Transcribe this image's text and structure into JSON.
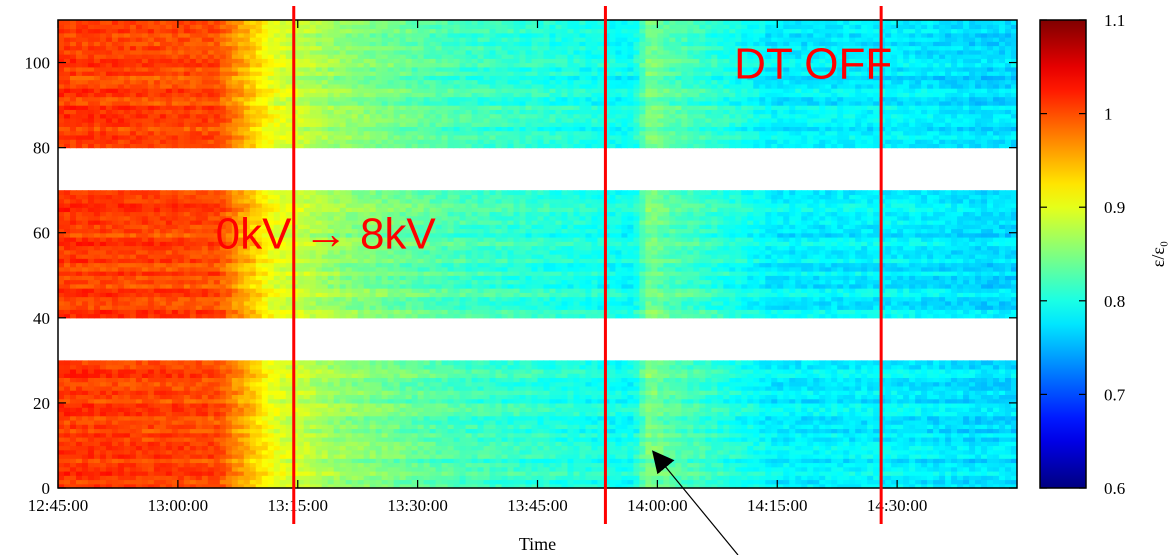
{
  "chart_data": {
    "type": "heatmap",
    "xlabel": "Time",
    "ylabel": "",
    "colorbar_label": "ε/ε₀",
    "x_ticks": [
      "12:45:00",
      "13:00:00",
      "13:15:00",
      "13:30:00",
      "13:45:00",
      "14:00:00",
      "14:15:00",
      "14:30:00"
    ],
    "x_range_minutes": [
      0,
      120
    ],
    "y_ticks": [
      0,
      20,
      40,
      60,
      80,
      100
    ],
    "ylim": [
      0,
      110
    ],
    "colorbar_ticks": [
      0.6,
      0.7,
      0.8,
      0.9,
      1,
      1.1
    ],
    "color_range": [
      0.6,
      1.1
    ],
    "colormap": "jet",
    "data_bands": [
      [
        0,
        30
      ],
      [
        40,
        70
      ],
      [
        80,
        110
      ]
    ],
    "time_profile": [
      {
        "t": 0,
        "v": 1.01
      },
      {
        "t": 20,
        "v": 1.0
      },
      {
        "t": 27,
        "v": 0.9
      },
      {
        "t": 35,
        "v": 0.86
      },
      {
        "t": 50,
        "v": 0.82
      },
      {
        "t": 65,
        "v": 0.8
      },
      {
        "t": 72,
        "v": 0.79
      },
      {
        "t": 74,
        "v": 0.85
      },
      {
        "t": 76,
        "v": 0.83
      },
      {
        "t": 90,
        "v": 0.78
      },
      {
        "t": 105,
        "v": 0.78
      },
      {
        "t": 115,
        "v": 0.77
      },
      {
        "t": 120,
        "v": 0.77
      }
    ],
    "event_lines_minutes": [
      29.5,
      68.5,
      103
    ],
    "event_line_color": "#ff0000",
    "annotations": [
      {
        "text": "DT OFF",
        "x": 94.5,
        "y": 100
      },
      {
        "text": "0kV → 8kV",
        "x": 33.5,
        "y": 60
      }
    ],
    "arrow": {
      "to_x": 74,
      "to_y": 8
    }
  }
}
